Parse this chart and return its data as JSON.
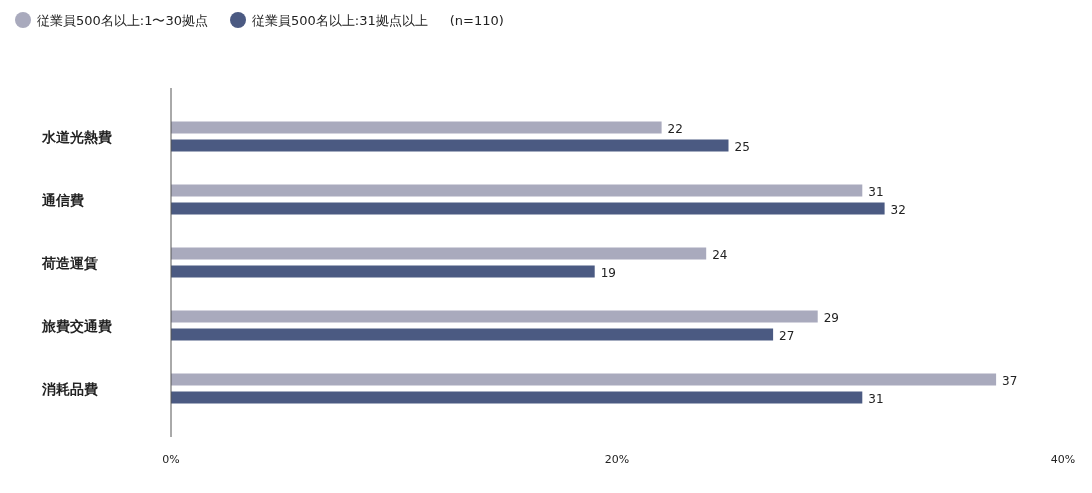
{
  "chart_data": {
    "type": "bar",
    "orientation": "horizontal",
    "categories": [
      "水道光熱費",
      "通信費",
      "荷造運賃",
      "旅費交通費",
      "消耗品費"
    ],
    "series": [
      {
        "name": "従業員500名以上:1〜30拠点",
        "color": "#a9aabd",
        "values": [
          22,
          31,
          24,
          29,
          37
        ]
      },
      {
        "name": "従業員500名以上:31拠点以上",
        "color": "#4b5a82",
        "values": [
          25,
          32,
          19,
          27,
          31
        ]
      }
    ],
    "xlim": [
      0,
      40
    ],
    "xticks": [
      {
        "value": 0,
        "label": "0%"
      },
      {
        "value": 20,
        "label": "20%"
      },
      {
        "value": 40,
        "label": "40%"
      }
    ],
    "data_labels": true,
    "legend": "top left",
    "annotations": [
      "(n=110)"
    ]
  }
}
